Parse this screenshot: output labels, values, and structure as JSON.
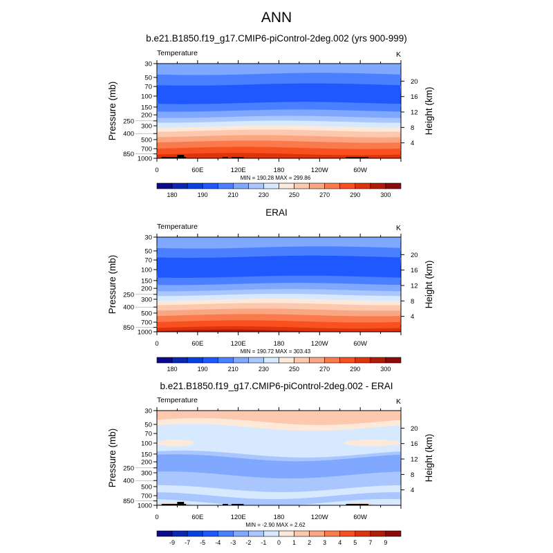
{
  "main_title": "ANN",
  "palettes": {
    "temp": [
      "#0b0b8a",
      "#0a28b0",
      "#0a3fe0",
      "#1f58ff",
      "#4a80ff",
      "#80a8ff",
      "#aac6ff",
      "#d6e9ff",
      "#fde9da",
      "#fcc9ae",
      "#fba683",
      "#fa7a4b",
      "#f9501f",
      "#df330b",
      "#b21b08",
      "#8b0a0a"
    ],
    "diff": [
      "#0b0b8a",
      "#0a28b0",
      "#0a3fe0",
      "#1f58ff",
      "#4a80ff",
      "#80a8ff",
      "#aac6ff",
      "#d6e9ff",
      "#fde9da",
      "#fcc9ae",
      "#fba683",
      "#fa7a4b",
      "#f9501f",
      "#df330b",
      "#b21b08",
      "#8b0a0a"
    ]
  },
  "chart_data": [
    {
      "type": "heatmap",
      "title": "b.e21.B1850.f19_g17.CMIP6-piControl-2deg.002 (yrs 900-999)",
      "left_label": "Temperature",
      "units": "K",
      "ylabel": "Pressure (mb)",
      "y2label": "Height (km)",
      "y_ticks": [
        30,
        50,
        70,
        100,
        150,
        200,
        250,
        300,
        400,
        500,
        700,
        850,
        1000
      ],
      "y2_ticks": [
        4,
        8,
        12,
        16,
        20
      ],
      "ylim": [
        30,
        1000
      ],
      "x_ticks": [
        {
          "lon": 0,
          "label": "0"
        },
        {
          "lon": 60,
          "label": "60E"
        },
        {
          "lon": 120,
          "label": "120E"
        },
        {
          "lon": 180,
          "label": "180"
        },
        {
          "lon": 240,
          "label": "120W"
        },
        {
          "lon": 300,
          "label": "60W"
        }
      ],
      "stats": "MIN = 190.28  MAX = 299.86",
      "palette": "temp",
      "colorbar_labels": [
        "180",
        "190",
        "210",
        "230",
        "250",
        "270",
        "290",
        "300"
      ],
      "colorbar_label_every": 2,
      "bands": [
        [
          30,
          44,
          5
        ],
        [
          44,
          65,
          4
        ],
        [
          65,
          129,
          3
        ],
        [
          129,
          171,
          4
        ],
        [
          171,
          216,
          5
        ],
        [
          216,
          258,
          6
        ],
        [
          258,
          309,
          7
        ],
        [
          309,
          360,
          8
        ],
        [
          360,
          442,
          9
        ],
        [
          442,
          540,
          10
        ],
        [
          540,
          681,
          11
        ],
        [
          681,
          855,
          12
        ],
        [
          855,
          1000,
          13
        ]
      ],
      "land": true
    },
    {
      "type": "heatmap",
      "title": "ERAI",
      "left_label": "Temperature",
      "units": "K",
      "ylabel": "Pressure (mb)",
      "y2label": "Height (km)",
      "y_ticks": [
        30,
        50,
        70,
        100,
        150,
        200,
        250,
        300,
        400,
        500,
        700,
        850,
        1000
      ],
      "y2_ticks": [
        4,
        8,
        12,
        16,
        20
      ],
      "ylim": [
        30,
        1000
      ],
      "x_ticks": [
        {
          "lon": 0,
          "label": "0"
        },
        {
          "lon": 60,
          "label": "60E"
        },
        {
          "lon": 120,
          "label": "120E"
        },
        {
          "lon": 180,
          "label": "180"
        },
        {
          "lon": 240,
          "label": "120W"
        },
        {
          "lon": 300,
          "label": "60W"
        }
      ],
      "stats": "MIN = 190.72  MAX = 303.43",
      "palette": "temp",
      "colorbar_labels": [
        "180",
        "190",
        "210",
        "230",
        "250",
        "270",
        "290",
        "300"
      ],
      "colorbar_label_every": 2,
      "bands": [
        [
          30,
          44,
          5
        ],
        [
          44,
          62,
          4
        ],
        [
          62,
          130,
          3
        ],
        [
          130,
          170,
          4
        ],
        [
          170,
          214,
          5
        ],
        [
          214,
          255,
          6
        ],
        [
          255,
          305,
          7
        ],
        [
          305,
          358,
          8
        ],
        [
          358,
          440,
          9
        ],
        [
          440,
          540,
          10
        ],
        [
          540,
          680,
          11
        ],
        [
          680,
          850,
          12
        ],
        [
          850,
          960,
          13
        ],
        [
          960,
          1000,
          14
        ]
      ],
      "land": false
    },
    {
      "type": "heatmap",
      "title": "b.e21.B1850.f19_g17.CMIP6-piControl-2deg.002 - ERAI",
      "left_label": "Temperature",
      "units": "K",
      "ylabel": "Pressure (mb)",
      "y2label": "Height (km)",
      "y_ticks": [
        30,
        50,
        70,
        100,
        150,
        200,
        250,
        300,
        400,
        500,
        700,
        850,
        1000
      ],
      "y2_ticks": [
        4,
        8,
        12,
        16,
        20
      ],
      "ylim": [
        30,
        1000
      ],
      "x_ticks": [
        {
          "lon": 0,
          "label": "0"
        },
        {
          "lon": 60,
          "label": "60E"
        },
        {
          "lon": 120,
          "label": "120E"
        },
        {
          "lon": 180,
          "label": "180"
        },
        {
          "lon": 240,
          "label": "120W"
        },
        {
          "lon": 300,
          "label": "60W"
        }
      ],
      "stats": "MIN =  -2.90  MAX =   2.62",
      "palette": "diff",
      "colorbar_labels": [
        "-9",
        "-7",
        "-5",
        "-4",
        "-3",
        "-2",
        "-1",
        "0",
        "1",
        "2",
        "3",
        "4",
        "5",
        "7",
        "9"
      ],
      "colorbar_label_every": 1,
      "bands": [
        [
          30,
          45,
          9
        ],
        [
          45,
          56,
          8
        ],
        [
          56,
          150,
          7
        ],
        [
          150,
          172,
          6
        ],
        [
          172,
          325,
          5
        ],
        [
          325,
          540,
          6
        ],
        [
          540,
          700,
          7
        ],
        [
          700,
          900,
          6
        ],
        [
          900,
          1000,
          7
        ]
      ],
      "patches": [
        [
          0,
          55,
          88,
          112,
          8
        ],
        [
          275,
          360,
          88,
          112,
          8
        ],
        [
          0,
          50,
          930,
          1000,
          9
        ],
        [
          280,
          320,
          930,
          1000,
          9
        ]
      ],
      "land": true
    }
  ]
}
